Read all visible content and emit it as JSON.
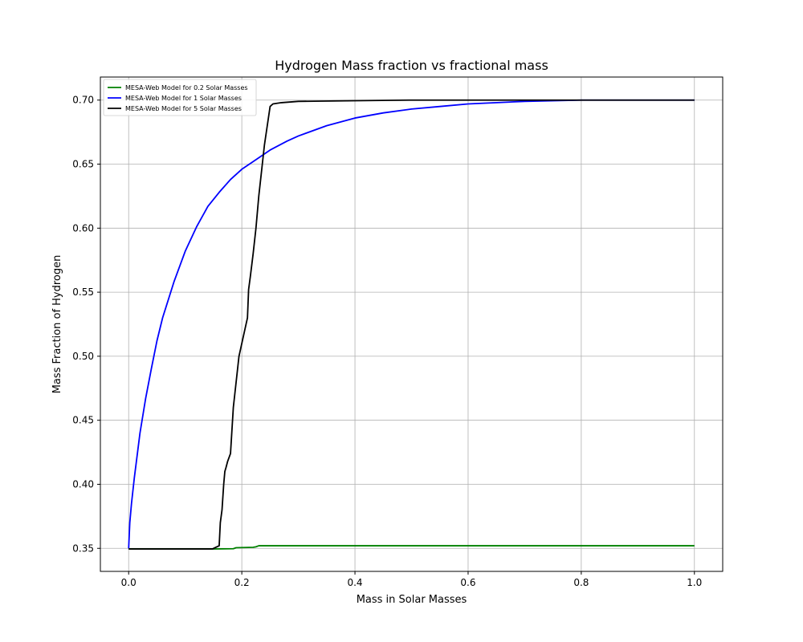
{
  "chart_data": {
    "type": "line",
    "title": "Hydrogen Mass fraction vs fractional mass",
    "xlabel": "Mass in Solar Masses",
    "ylabel": "Mass Fraction of Hydrogen",
    "xlim": [
      -0.05,
      1.05
    ],
    "ylim": [
      0.332,
      0.718
    ],
    "xticks": [
      0.0,
      0.2,
      0.4,
      0.6,
      0.8,
      1.0
    ],
    "xtick_labels": [
      "0.0",
      "0.2",
      "0.4",
      "0.6",
      "0.8",
      "1.0"
    ],
    "yticks": [
      0.35,
      0.4,
      0.45,
      0.5,
      0.55,
      0.6,
      0.65,
      0.7
    ],
    "ytick_labels": [
      "0.35",
      "0.40",
      "0.45",
      "0.50",
      "0.55",
      "0.60",
      "0.65",
      "0.70"
    ],
    "grid": true,
    "legend_position": "top-left",
    "series": [
      {
        "name": "MESA-Web Model for 0.2 Solar Masses",
        "color": "#008000",
        "x": [
          0.0,
          0.1,
          0.15,
          0.185,
          0.19,
          0.22,
          0.225,
          0.23,
          0.5,
          1.0
        ],
        "y": [
          0.3495,
          0.3495,
          0.3495,
          0.3497,
          0.3505,
          0.3508,
          0.3512,
          0.352,
          0.352,
          0.352
        ]
      },
      {
        "name": "MESA-Web Model for 1 Solar Masses",
        "color": "#0000ff",
        "x": [
          0.0,
          0.002,
          0.005,
          0.01,
          0.02,
          0.03,
          0.04,
          0.05,
          0.06,
          0.08,
          0.1,
          0.12,
          0.14,
          0.16,
          0.18,
          0.2,
          0.22,
          0.25,
          0.28,
          0.3,
          0.35,
          0.4,
          0.45,
          0.5,
          0.55,
          0.6,
          0.7,
          0.8,
          0.9,
          1.0
        ],
        "y": [
          0.35,
          0.37,
          0.385,
          0.405,
          0.44,
          0.467,
          0.49,
          0.512,
          0.53,
          0.558,
          0.582,
          0.601,
          0.617,
          0.628,
          0.638,
          0.646,
          0.652,
          0.661,
          0.668,
          0.672,
          0.68,
          0.686,
          0.69,
          0.693,
          0.695,
          0.697,
          0.699,
          0.7,
          0.7,
          0.7
        ]
      },
      {
        "name": "MESA-Web Model for 5 Solar Masses",
        "color": "#000000",
        "x": [
          0.0,
          0.1,
          0.148,
          0.155,
          0.16,
          0.162,
          0.165,
          0.168,
          0.17,
          0.172,
          0.175,
          0.18,
          0.185,
          0.19,
          0.195,
          0.2,
          0.205,
          0.21,
          0.212,
          0.215,
          0.22,
          0.225,
          0.23,
          0.235,
          0.24,
          0.245,
          0.25,
          0.255,
          0.27,
          0.3,
          0.4,
          0.5,
          1.0
        ],
        "y": [
          0.3495,
          0.3495,
          0.3495,
          0.351,
          0.352,
          0.37,
          0.38,
          0.4,
          0.41,
          0.413,
          0.418,
          0.424,
          0.46,
          0.48,
          0.5,
          0.51,
          0.52,
          0.53,
          0.552,
          0.562,
          0.58,
          0.6,
          0.625,
          0.645,
          0.665,
          0.68,
          0.695,
          0.697,
          0.698,
          0.699,
          0.6995,
          0.7,
          0.7
        ]
      }
    ]
  }
}
